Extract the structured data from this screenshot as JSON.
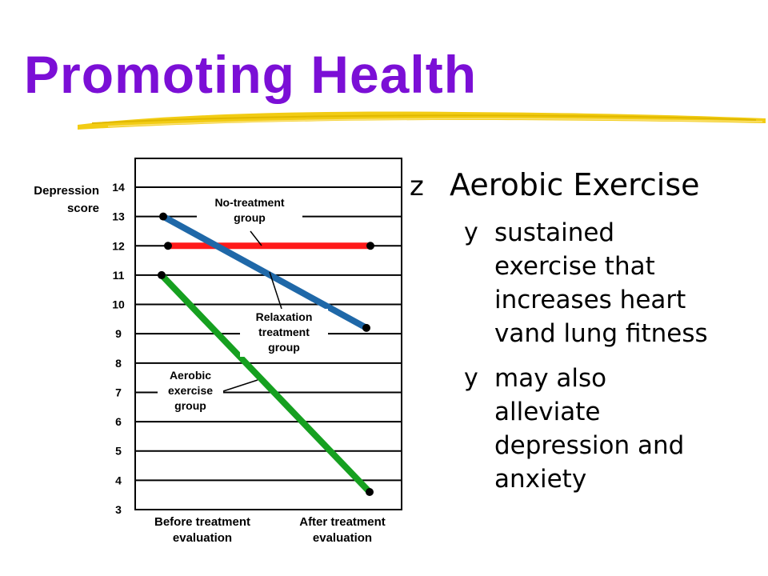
{
  "slide": {
    "title": "Promoting Health",
    "title_color": "#7b0fd6",
    "accent_color": "#f2cc14"
  },
  "bullets": {
    "main": {
      "marker": "z",
      "text": "Aerobic Exercise"
    },
    "subs": [
      {
        "marker": "y",
        "lines": [
          "sustained",
          "exercise that",
          "increases heart",
          "vand lung fitness"
        ]
      },
      {
        "marker": "y",
        "lines": [
          "may also",
          "alleviate",
          "depression and",
          "anxiety"
        ]
      }
    ]
  },
  "chart_data": {
    "type": "line",
    "ylabel_lines": [
      "Depression",
      "score"
    ],
    "ylim": [
      3,
      14
    ],
    "yticks": [
      3,
      4,
      5,
      6,
      7,
      8,
      9,
      10,
      11,
      12,
      13,
      14
    ],
    "categories": [
      [
        "Before treatment",
        "evaluation"
      ],
      [
        "After treatment",
        "evaluation"
      ]
    ],
    "grid": true,
    "series": [
      {
        "name_lines": [
          "No-treatment",
          "group"
        ],
        "values": [
          12,
          12
        ],
        "color": "#ff1a1a"
      },
      {
        "name_lines": [
          "Relaxation",
          "treatment",
          "group"
        ],
        "values": [
          13,
          9.2
        ],
        "color": "#1f68a8"
      },
      {
        "name_lines": [
          "Aerobic",
          "exercise",
          "group"
        ],
        "values": [
          11,
          3.6
        ],
        "color": "#16a020"
      }
    ]
  }
}
